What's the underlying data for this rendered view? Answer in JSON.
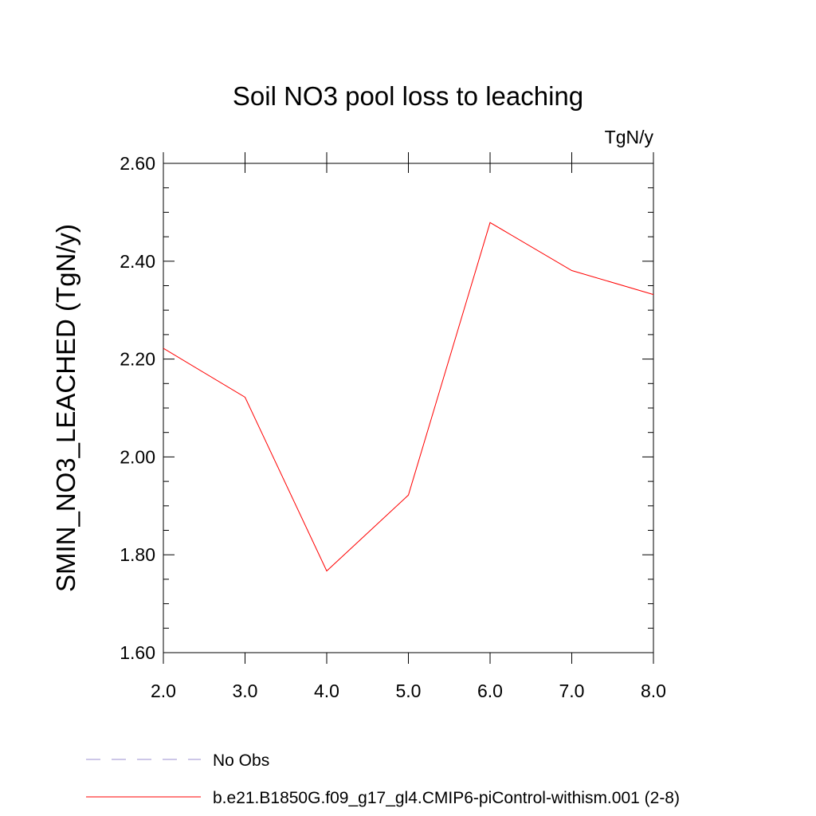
{
  "chart_data": {
    "type": "line",
    "title": "Soil NO3 pool loss to leaching",
    "units_label": "TgN/y",
    "ylabel": "SMIN_NO3_LEACHED  (TgN/y)",
    "xlabel": "",
    "xlim": [
      2.0,
      8.0
    ],
    "ylim": [
      1.6,
      2.6
    ],
    "x_ticks": [
      "2.0",
      "3.0",
      "4.0",
      "5.0",
      "6.0",
      "7.0",
      "8.0"
    ],
    "y_ticks": [
      "1.60",
      "1.80",
      "2.00",
      "2.20",
      "2.40",
      "2.60"
    ],
    "grid": false,
    "legend_position": "bottom",
    "series": [
      {
        "name": "b.e21.B1850G.f09_g17_gl4.CMIP6-piControl-withism.001 (2-8)",
        "color": "#ff0000",
        "style": "solid",
        "x": [
          2,
          3,
          4,
          5,
          6,
          7,
          8
        ],
        "y": [
          2.222,
          2.122,
          1.767,
          1.922,
          2.479,
          2.381,
          2.332
        ]
      }
    ],
    "legend": [
      {
        "label": "No Obs",
        "color": "#9b8fd0",
        "style": "dashed"
      },
      {
        "label": "b.e21.B1850G.f09_g17_gl4.CMIP6-piControl-withism.001 (2-8)",
        "color": "#ff0000",
        "style": "solid"
      }
    ]
  }
}
